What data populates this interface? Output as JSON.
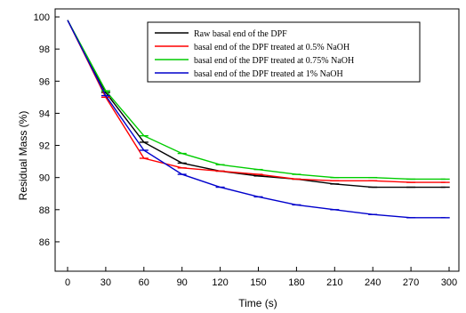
{
  "chart_data": {
    "type": "line",
    "xlabel": "Time  (s)",
    "ylabel": "Residual Mass (%)",
    "xlim": [
      0,
      300
    ],
    "ylim": [
      85,
      100.5
    ],
    "xticks": [
      0,
      30,
      60,
      90,
      120,
      150,
      180,
      210,
      240,
      270,
      300
    ],
    "xtick_labels": [
      "0",
      "30",
      "60",
      "90",
      "120",
      "150",
      "180",
      "210",
      "240",
      "270",
      "300"
    ],
    "yticks": [
      86,
      88,
      90,
      92,
      94,
      96,
      98,
      100
    ],
    "ytick_labels": [
      "86",
      "88",
      "90",
      "92",
      "94",
      "96",
      "98",
      "100"
    ],
    "grid": false,
    "legend_position": "top-right",
    "x": [
      0,
      30,
      60,
      90,
      120,
      150,
      180,
      210,
      240,
      270,
      297
    ],
    "series": [
      {
        "name": "Raw basal  end of the DPF",
        "color": "#000000",
        "values": [
          99.8,
          95.3,
          92.2,
          90.9,
          90.4,
          90.1,
          89.9,
          89.6,
          89.4,
          89.4,
          89.4
        ]
      },
      {
        "name": "basal  end of the DPF treated at 0.5% NaOH",
        "color": "#ff0000",
        "values": [
          99.8,
          95.0,
          91.2,
          90.6,
          90.4,
          90.2,
          89.9,
          89.8,
          89.8,
          89.7,
          89.7
        ]
      },
      {
        "name": "basal  end of the DPF treated at 0.75% NaOH",
        "color": "#00cc00",
        "values": [
          99.8,
          95.4,
          92.6,
          91.5,
          90.8,
          90.5,
          90.2,
          90.0,
          90.0,
          89.9,
          89.9
        ]
      },
      {
        "name": "basal  end of the DPF treated at 1% NaOH",
        "color": "#0000cc",
        "values": [
          99.8,
          95.1,
          91.7,
          90.2,
          89.4,
          88.8,
          88.3,
          88.0,
          87.7,
          87.5,
          87.5
        ]
      }
    ]
  }
}
